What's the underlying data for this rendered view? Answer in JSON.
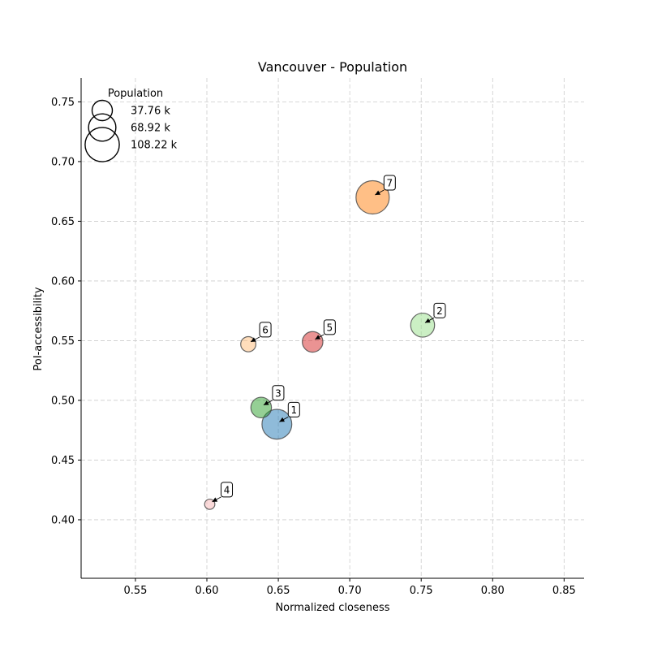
{
  "chart_data": {
    "type": "scatter",
    "title": "Vancouver - Population",
    "xlabel": "Normalized closeness",
    "ylabel": "PoI-accessibility",
    "xlim": [
      0.512,
      0.864
    ],
    "ylim": [
      0.351,
      0.77
    ],
    "xticks": [
      0.55,
      0.6,
      0.65,
      0.7,
      0.75,
      0.8,
      0.85
    ],
    "yticks": [
      0.4,
      0.45,
      0.5,
      0.55,
      0.6,
      0.65,
      0.7,
      0.75
    ],
    "grid": true,
    "legend": {
      "title": "Population",
      "placement": "top-left",
      "entries": [
        {
          "label": "37.76 k",
          "value": 37.76
        },
        {
          "label": "68.92 k",
          "value": 68.92
        },
        {
          "label": "108.22 k",
          "value": 108.22
        }
      ]
    },
    "points": [
      {
        "label": "1",
        "x": 0.649,
        "y": 0.48,
        "population": 78.0,
        "color": "#1f77b4"
      },
      {
        "label": "2",
        "x": 0.751,
        "y": 0.563,
        "population": 50.0,
        "color": "#98df8a"
      },
      {
        "label": "3",
        "x": 0.638,
        "y": 0.494,
        "population": 37.0,
        "color": "#2ca02c"
      },
      {
        "label": "4",
        "x": 0.602,
        "y": 0.413,
        "population": 9.0,
        "color": "#f7b6b6"
      },
      {
        "label": "5",
        "x": 0.674,
        "y": 0.549,
        "population": 37.0,
        "color": "#d62728"
      },
      {
        "label": "6",
        "x": 0.629,
        "y": 0.547,
        "population": 20.0,
        "color": "#ffbb78"
      },
      {
        "label": "7",
        "x": 0.716,
        "y": 0.67,
        "population": 97.0,
        "color": "#ff7f0e"
      }
    ]
  }
}
